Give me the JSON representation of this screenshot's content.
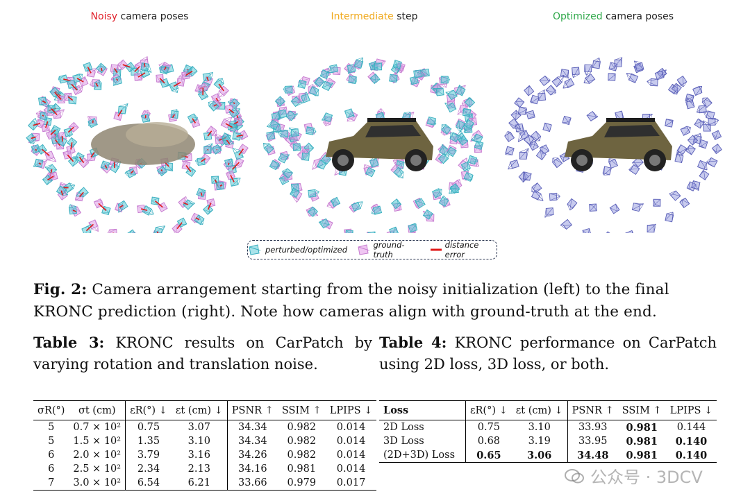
{
  "panels": [
    {
      "title_colored": "Noisy",
      "title_rest": " camera poses",
      "color": "#e0202a"
    },
    {
      "title_colored": "Intermediate",
      "title_rest": " step",
      "color": "#f0a81a"
    },
    {
      "title_colored": "Optimized",
      "title_rest": " camera poses",
      "color": "#2fa84a"
    }
  ],
  "legend": {
    "perturbed": "perturbed/optimized",
    "ground_truth": "ground-truth",
    "distance": "distance error"
  },
  "figure_caption": {
    "label": "Fig. 2:",
    "text": " Camera arrangement starting from the noisy initialization (left) to the final KRONC prediction (right). Note how cameras align with ground-truth at the end."
  },
  "table3": {
    "label": "Table 3:",
    "caption": " KRONC results on CarPatch by varying rotation and translation noise.",
    "headers": [
      "σR(°)",
      "σt (cm)",
      "εR(°) ↓",
      "εt (cm) ↓",
      "PSNR ↑",
      "SSIM ↑",
      "LPIPS ↓"
    ],
    "rows": [
      [
        "5",
        "0.7 × 10²",
        "0.75",
        "3.07",
        "34.34",
        "0.982",
        "0.014"
      ],
      [
        "5",
        "1.5 × 10²",
        "1.35",
        "3.10",
        "34.34",
        "0.982",
        "0.014"
      ],
      [
        "6",
        "2.0 × 10²",
        "3.79",
        "3.16",
        "34.26",
        "0.982",
        "0.014"
      ],
      [
        "6",
        "2.5 × 10²",
        "2.34",
        "2.13",
        "34.16",
        "0.981",
        "0.014"
      ],
      [
        "7",
        "3.0 × 10²",
        "6.54",
        "6.21",
        "33.66",
        "0.979",
        "0.017"
      ]
    ]
  },
  "table4": {
    "label": "Table 4:",
    "caption": " KRONC performance on CarPatch using 2D loss, 3D loss, or both.",
    "headers": [
      "Loss",
      "εR(°) ↓",
      "εt (cm) ↓",
      "PSNR ↑",
      "SSIM ↑",
      "LPIPS ↓"
    ],
    "rows": [
      [
        "2D Loss",
        "0.75",
        "3.10",
        "33.93",
        "0.981",
        "0.144"
      ],
      [
        "3D Loss",
        "0.68",
        "3.19",
        "33.95",
        "0.981",
        "0.140"
      ],
      [
        "(2D+3D) Loss",
        "0.65",
        "3.06",
        "34.48",
        "0.981",
        "0.140"
      ]
    ]
  },
  "watermark": "公众号 · 3DCV",
  "colors": {
    "teal": "#5cc9d6",
    "pink": "#dd9be3",
    "red": "#e01818",
    "navy": "#5b60b8"
  }
}
